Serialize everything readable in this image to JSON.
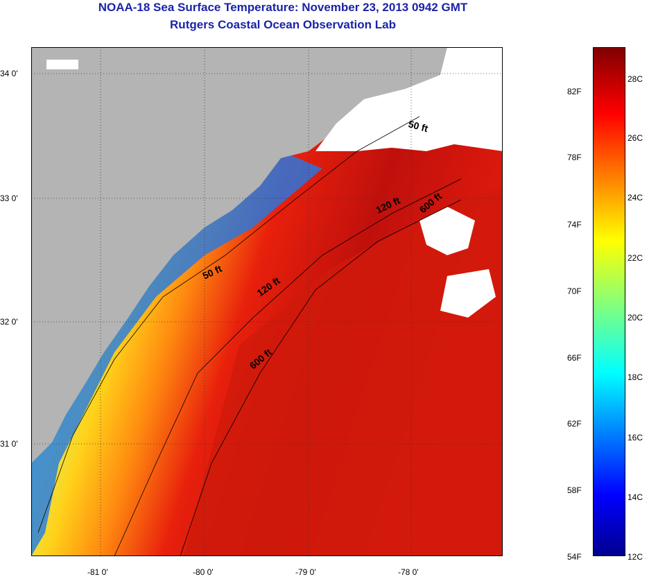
{
  "title": "NOAA-18 Sea Surface Temperature:  November 23, 2013 0942 GMT",
  "subtitle": "Rutgers Coastal Ocean Observation Lab",
  "map": {
    "lat_ticks": [
      "34 0'",
      "33 0'",
      "32 0'",
      "31 0'"
    ],
    "lon_ticks": [
      "-81 0'",
      "-80 0'",
      "-79 0'",
      "-78 0'"
    ],
    "isobath_labels": [
      "50 ft",
      "50 ft",
      "120 ft",
      "120 ft",
      "600 ft",
      "600 ft"
    ],
    "colors": {
      "land": "#b4b4b4",
      "cloud": "#ffffff"
    }
  },
  "colorbar": {
    "fahrenheit": [
      "82F",
      "78F",
      "74F",
      "70F",
      "66F",
      "62F",
      "58F",
      "54F"
    ],
    "celsius": [
      "28C",
      "26C",
      "24C",
      "22C",
      "20C",
      "18C",
      "16C",
      "14C",
      "12C"
    ],
    "range_c": [
      12,
      29
    ]
  }
}
